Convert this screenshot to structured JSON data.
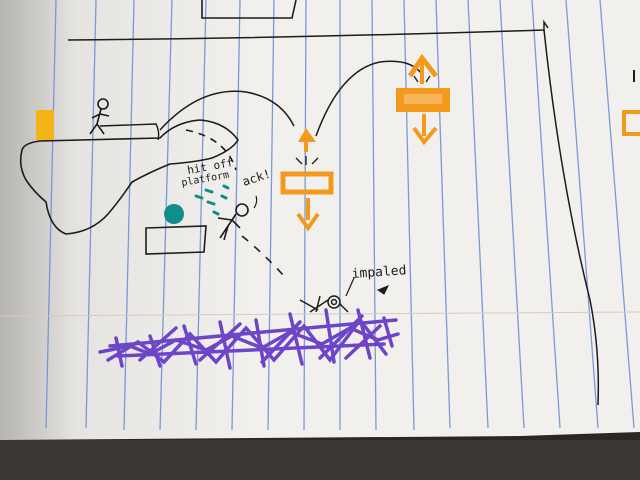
{
  "annotations": {
    "hit_off_line1": "hit off",
    "hit_off_line2": "platform",
    "ack": "ack!",
    "impaled": "impaled"
  },
  "colors": {
    "paper": "#f1f0ec",
    "rule_line": "#6f8fd6",
    "ink": "#1c1c1c",
    "orange": "#f39a1d",
    "teal": "#0f8e8c",
    "purple": "#6e44c9",
    "yellow": "#f2b416",
    "background": "#2a2826"
  }
}
